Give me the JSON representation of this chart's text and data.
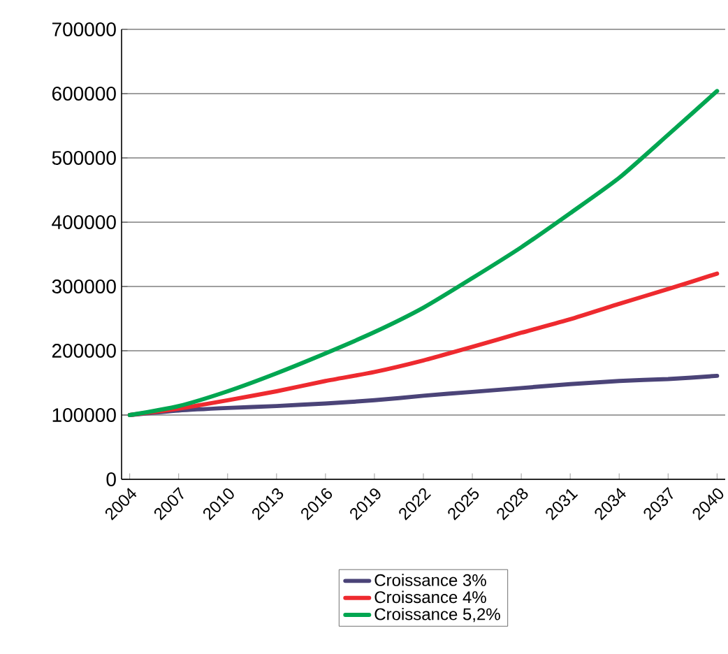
{
  "chart_data": {
    "type": "line",
    "x": [
      2004,
      2007,
      2010,
      2013,
      2016,
      2019,
      2022,
      2025,
      2028,
      2031,
      2034,
      2037,
      2040
    ],
    "series": [
      {
        "name": "Croissance 3%",
        "color": "#4b4478",
        "values": [
          100000,
          107000,
          111000,
          114000,
          118000,
          123000,
          130000,
          136000,
          142000,
          148000,
          153000,
          156000,
          161000
        ]
      },
      {
        "name": "Croissance 4%",
        "color": "#ee2a2f",
        "values": [
          100000,
          110000,
          123000,
          137000,
          153000,
          167000,
          185000,
          206000,
          228000,
          249000,
          273000,
          296000,
          320000
        ]
      },
      {
        "name": "Croissance 5,2%",
        "color": "#00a651",
        "values": [
          100000,
          114000,
          137000,
          165000,
          196000,
          229000,
          267000,
          313000,
          361000,
          414000,
          469000,
          536000,
          604000
        ]
      }
    ],
    "xlim": [
      2003.5,
      2040.5
    ],
    "xticks": [
      2004,
      2007,
      2010,
      2013,
      2016,
      2019,
      2022,
      2025,
      2028,
      2031,
      2034,
      2037,
      2040
    ],
    "ylim": [
      0,
      700000
    ],
    "yticks": [
      0,
      100000,
      200000,
      300000,
      400000,
      500000,
      600000,
      700000
    ],
    "grid": "y",
    "legend": "bottom",
    "marker": "none",
    "line_style": "solid"
  }
}
